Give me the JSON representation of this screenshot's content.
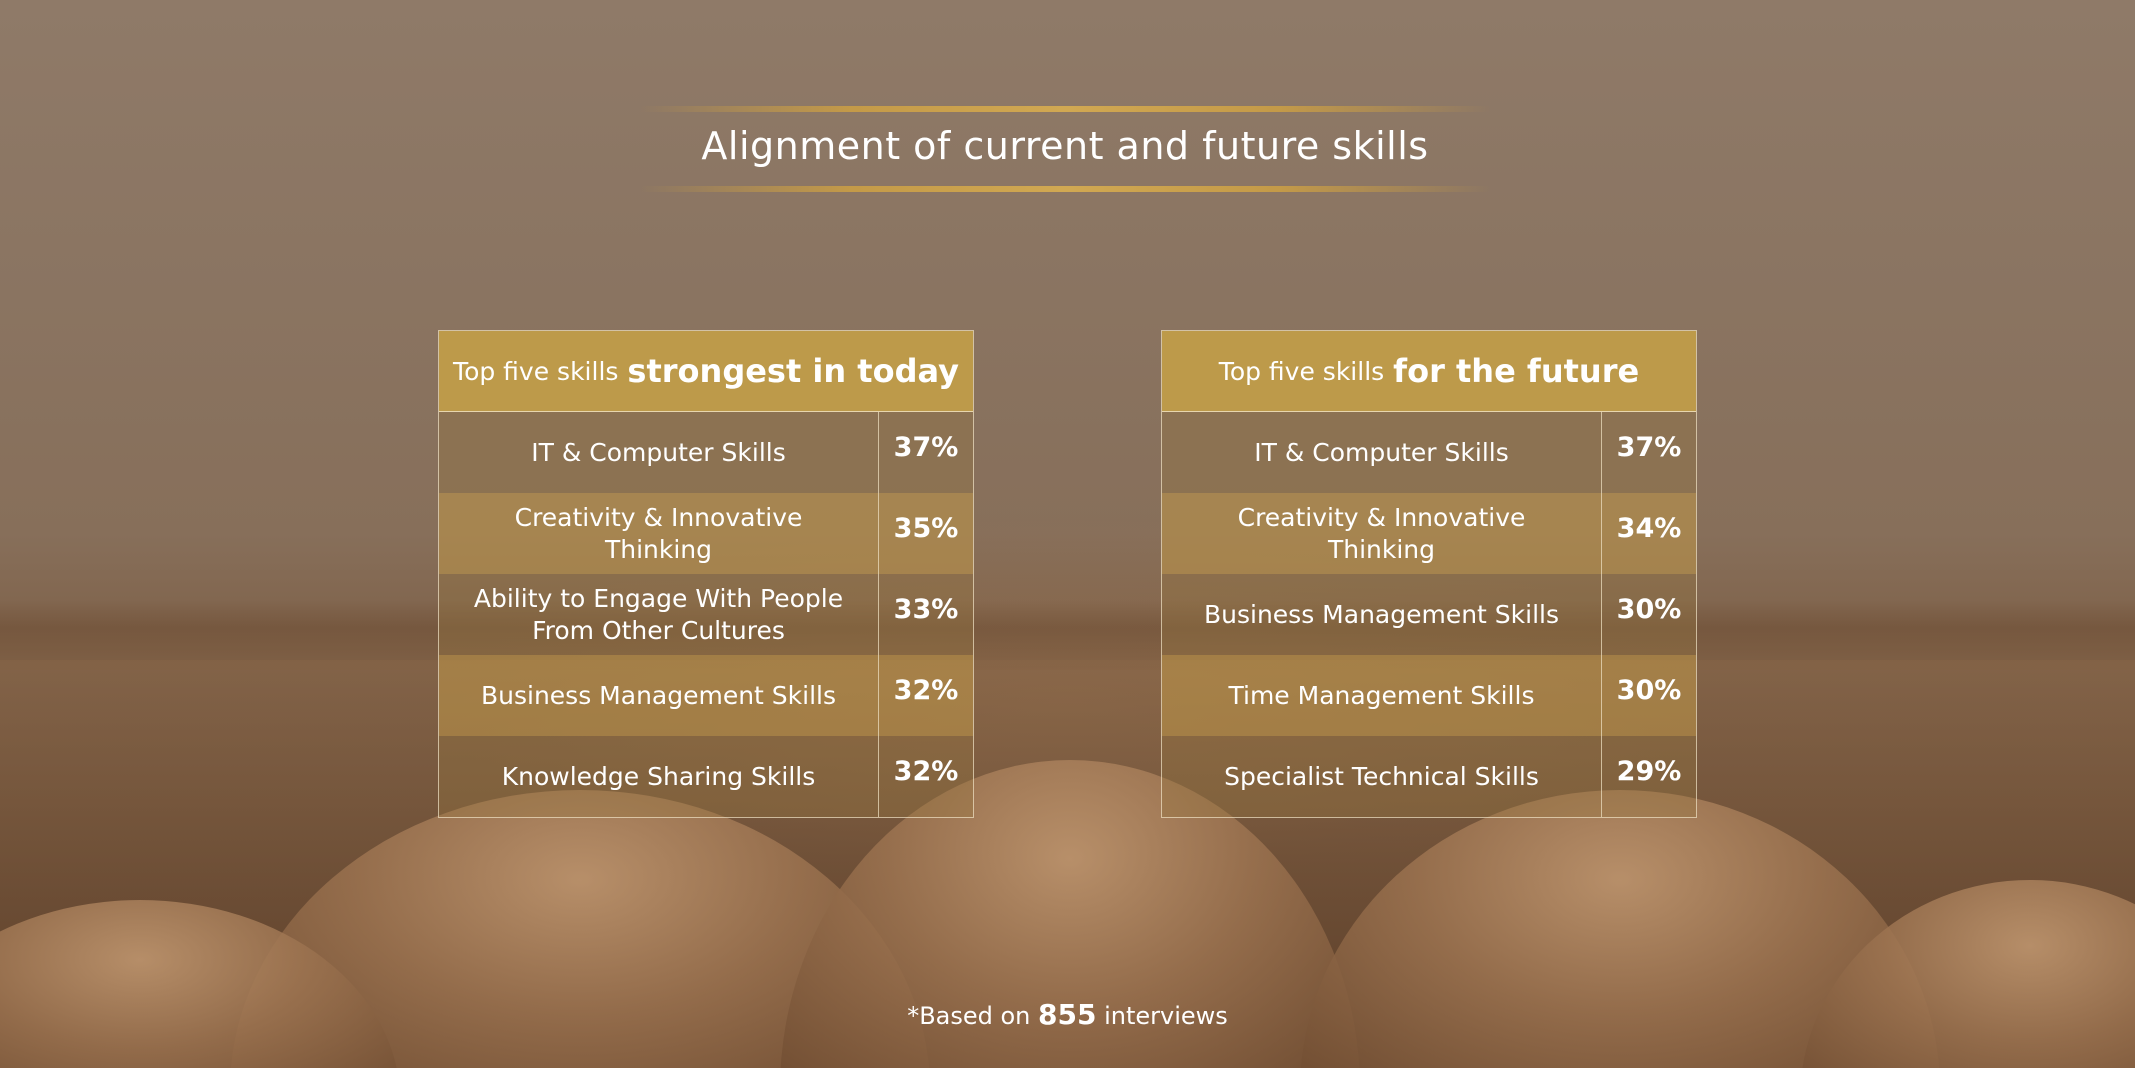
{
  "colors": {
    "gold": "#bd9a4a",
    "gold_light": "#c0984a",
    "text": "#ffffff",
    "border": "#ebdcbe"
  },
  "title": "Alignment of current and future skills",
  "footnote": {
    "prefix": "*Based on ",
    "count": "855",
    "suffix": " interviews"
  },
  "chart_data": [
    {
      "type": "table",
      "title": "Top five skills strongest in today",
      "title_prefix": "Top five skills",
      "title_emphasis": "strongest in today",
      "rows": [
        {
          "skill": "IT & Computer Skills",
          "value": 37,
          "label": "37%"
        },
        {
          "skill": "Creativity & Innovative Thinking",
          "value": 35,
          "label": "35%"
        },
        {
          "skill": "Ability to Engage With People From Other Cultures",
          "value": 33,
          "label": "33%"
        },
        {
          "skill": "Business Management Skills",
          "value": 32,
          "label": "32%"
        },
        {
          "skill": "Knowledge Sharing Skills",
          "value": 32,
          "label": "32%"
        }
      ]
    },
    {
      "type": "table",
      "title": "Top five skills for the future",
      "title_prefix": "Top five skills",
      "title_emphasis": "for the future",
      "rows": [
        {
          "skill": "IT & Computer Skills",
          "value": 37,
          "label": "37%"
        },
        {
          "skill": "Creativity & Innovative Thinking",
          "value": 34,
          "label": "34%"
        },
        {
          "skill": "Business Management Skills",
          "value": 30,
          "label": "30%"
        },
        {
          "skill": "Time Management Skills",
          "value": 30,
          "label": "30%"
        },
        {
          "skill": "Specialist Technical Skills",
          "value": 29,
          "label": "29%"
        }
      ]
    }
  ]
}
